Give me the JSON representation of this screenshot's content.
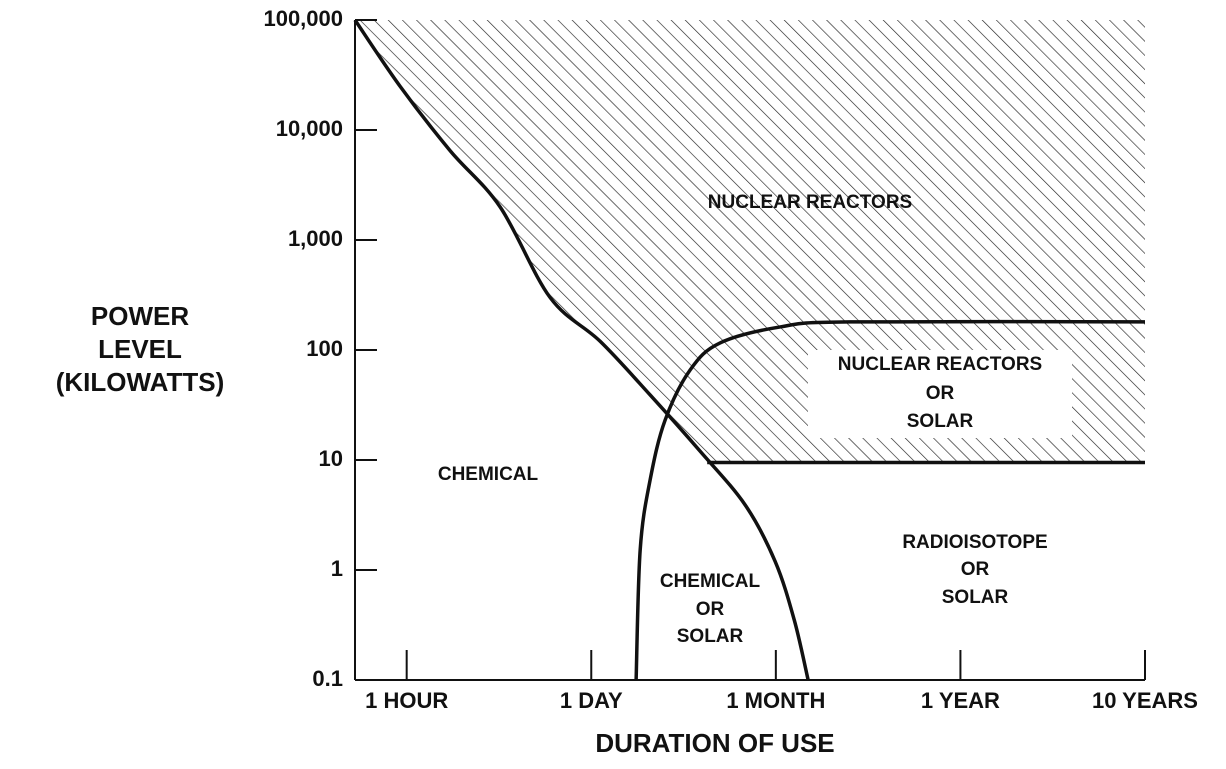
{
  "chart_data": {
    "type": "line",
    "xlabel": "DURATION OF USE",
    "ylabel": [
      "POWER",
      "LEVEL",
      "(KILOWATTS)"
    ],
    "log_y": true,
    "color": "#111111",
    "xlim": [
      0.72,
      5
    ],
    "xticks": [
      {
        "value": 1,
        "label": "1 HOUR"
      },
      {
        "value": 2,
        "label": "1 DAY"
      },
      {
        "value": 3,
        "label": "1 MONTH"
      },
      {
        "value": 4,
        "label": "1 YEAR"
      },
      {
        "value": 5,
        "label": "10 YEARS"
      }
    ],
    "ylim": [
      0.1,
      100000
    ],
    "yticks": [
      {
        "value": 100000,
        "label": "100,000"
      },
      {
        "value": 10000,
        "label": "10,000"
      },
      {
        "value": 1000,
        "label": "1,000"
      },
      100,
      10,
      1,
      0.1
    ],
    "series": [
      {
        "color": "#111111",
        "x": [
          0.72,
          0.964,
          1.235,
          1.506,
          1.777,
          2.048,
          2.319,
          2.59,
          2.834,
          2.996,
          3.1,
          3.175
        ],
        "y": [
          100000,
          25000,
          6500,
          2000,
          300,
          120,
          39,
          12,
          3.9,
          1.2,
          0.35,
          0.1
        ]
      },
      {
        "color": "#111111",
        "x": [
          2.243,
          2.265,
          2.319,
          2.4,
          2.536,
          2.698,
          3.024,
          3.403,
          5
        ],
        "y": [
          0.1,
          1.52,
          6.6,
          23,
          66,
          116,
          162,
          180,
          180
        ]
      },
      {
        "color": "#111111",
        "x": [
          2.628,
          5
        ],
        "y": [
          9.5,
          9.5
        ]
      }
    ],
    "annotations": [
      [
        "NUCLEAR REACTORS"
      ],
      [
        "NUCLEAR REACTORS",
        "OR",
        "SOLAR"
      ],
      [
        "CHEMICAL"
      ],
      [
        "CHEMICAL",
        "OR",
        "SOLAR"
      ],
      [
        "RADIOISOTOPE",
        "OR",
        "SOLAR"
      ]
    ]
  }
}
